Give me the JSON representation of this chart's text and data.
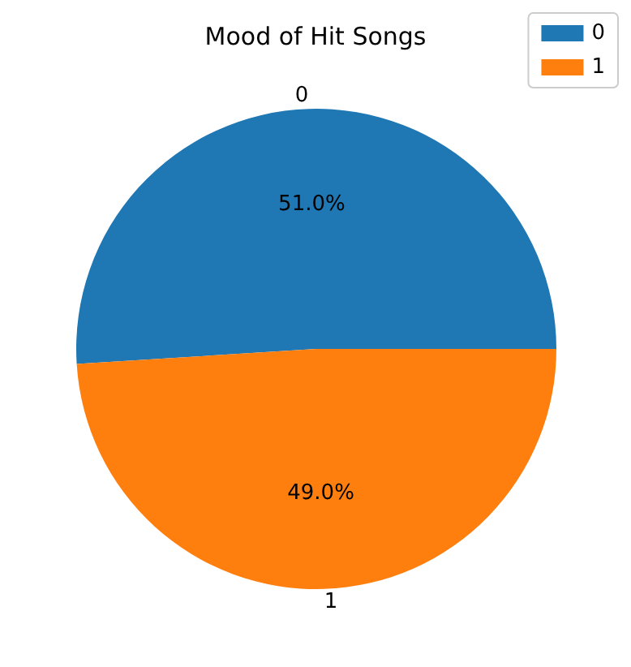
{
  "chart_data": {
    "type": "pie",
    "title": "Mood of Hit Songs",
    "categories": [
      "0",
      "1"
    ],
    "values": [
      51,
      49
    ],
    "colors": [
      "#1f77b4",
      "#ff7f0e"
    ],
    "value_labels": [
      "51.0%",
      "49.0%"
    ],
    "legend": "top right"
  }
}
